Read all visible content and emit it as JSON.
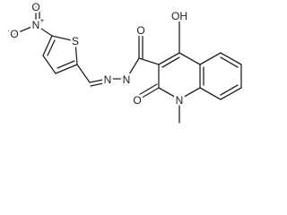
{
  "atoms": [
    {
      "label": "O"
    },
    {
      "label": "N",
      "charge": "+"
    },
    {
      "label": "O",
      "charge": "-"
    },
    {
      "label": "S"
    },
    {
      "label": "N"
    },
    {
      "label": "N"
    },
    {
      "label": "O"
    },
    {
      "label": "OH"
    },
    {
      "label": "O"
    },
    {
      "label": "N"
    }
  ]
}
